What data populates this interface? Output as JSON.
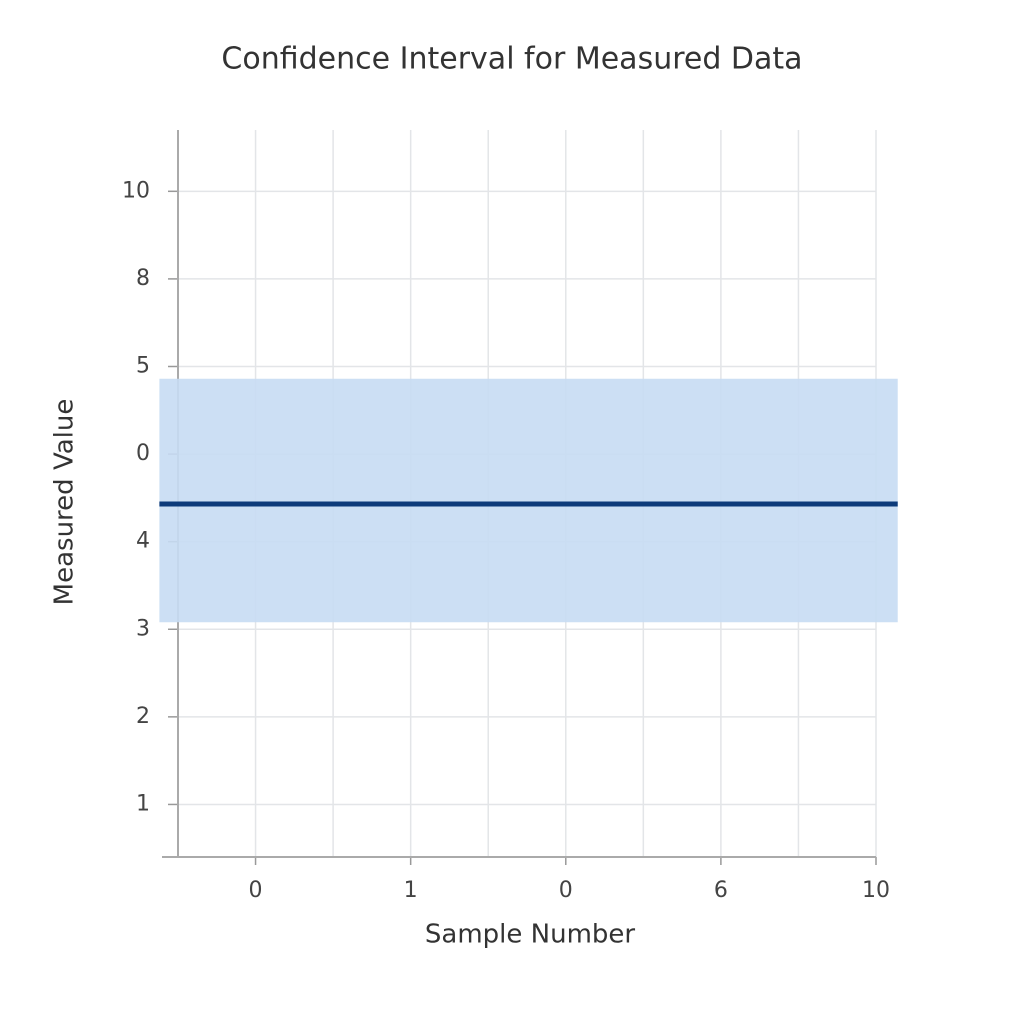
{
  "chart_data": {
    "type": "line",
    "title": "Confidence Interval for Measured Data",
    "x_label": "Sample Number",
    "y_label": "Measured Value",
    "x": [
      -0.62,
      4.14
    ],
    "series": [
      {
        "color": "#0d3b7a",
        "values": [
          4.43,
          4.43
        ],
        "lower": [
          3.08,
          3.08
        ],
        "upper": [
          5.86,
          5.86
        ],
        "band_color": "#c6dcf3"
      }
    ],
    "xlim": [
      -0.5,
      4.0
    ],
    "xticks": [
      0,
      1,
      {
        "value": 2,
        "label": "0"
      },
      {
        "value": 3,
        "label": "6"
      },
      {
        "value": 4,
        "label": "10"
      }
    ],
    "xminorticks": [
      -0.5,
      0.5,
      1.5,
      2.5,
      3.5
    ],
    "ylim": [
      0.4,
      8.7
    ],
    "yticks": [
      1,
      2,
      3,
      4,
      {
        "value": 5,
        "label": "0"
      },
      {
        "value": 6,
        "label": "5"
      },
      {
        "value": 7,
        "label": "8"
      },
      {
        "value": 8,
        "label": "10"
      }
    ],
    "grid": true
  }
}
